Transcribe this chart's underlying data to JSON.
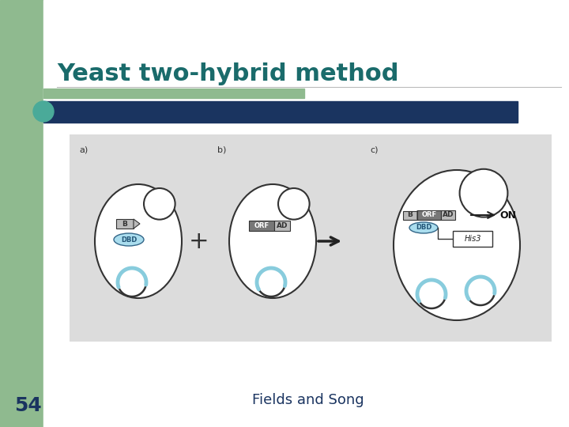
{
  "title": "Yeast two-hybrid method",
  "title_color": "#1a6b6b",
  "slide_bg": "#ffffff",
  "green_sidebar_color": "#8fba8f",
  "green_corner_color": "#8fba8f",
  "navy_bar_color": "#1a3460",
  "teal_circle_color": "#4aaa99",
  "diagram_bg": "#dcdcdc",
  "cell_outline": "#333333",
  "cell_fill": "#ffffff",
  "dbd_fill": "#aaddee",
  "dbd_outline": "#336688",
  "dbd_text": "#225577",
  "b_flag_fill": "#bbbbbb",
  "orf_fill": "#777777",
  "ad_fill": "#bbbbbb",
  "his3_fill": "#ffffff",
  "chrom_dark": "#333333",
  "chrom_teal": "#88ccdd",
  "arrow_color": "#222222",
  "on_color": "#111111",
  "label_color": "#333333",
  "label_54_color": "#1a3460",
  "fields_song_color": "#1a3460",
  "label_54": "54",
  "fields_song": "Fields and Song"
}
